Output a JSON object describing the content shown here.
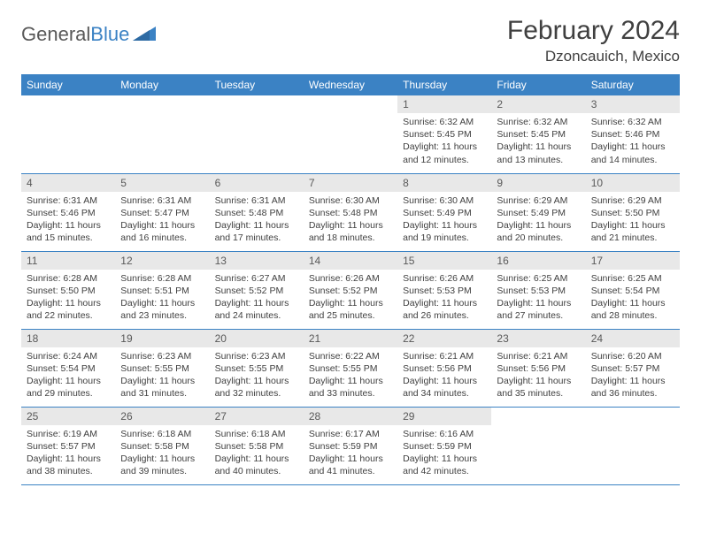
{
  "brand": {
    "part1": "General",
    "part2": "Blue"
  },
  "title": "February 2024",
  "location": "Dzoncauich, Mexico",
  "colors": {
    "header_bg": "#3b82c4",
    "header_text": "#ffffff",
    "daynum_bg": "#e8e8e8",
    "text": "#404040",
    "border": "#3b82c4"
  },
  "weekdays": [
    "Sunday",
    "Monday",
    "Tuesday",
    "Wednesday",
    "Thursday",
    "Friday",
    "Saturday"
  ],
  "weeks": [
    [
      null,
      null,
      null,
      null,
      {
        "n": "1",
        "sunrise": "6:32 AM",
        "sunset": "5:45 PM",
        "dl": "11 hours and 12 minutes."
      },
      {
        "n": "2",
        "sunrise": "6:32 AM",
        "sunset": "5:45 PM",
        "dl": "11 hours and 13 minutes."
      },
      {
        "n": "3",
        "sunrise": "6:32 AM",
        "sunset": "5:46 PM",
        "dl": "11 hours and 14 minutes."
      }
    ],
    [
      {
        "n": "4",
        "sunrise": "6:31 AM",
        "sunset": "5:46 PM",
        "dl": "11 hours and 15 minutes."
      },
      {
        "n": "5",
        "sunrise": "6:31 AM",
        "sunset": "5:47 PM",
        "dl": "11 hours and 16 minutes."
      },
      {
        "n": "6",
        "sunrise": "6:31 AM",
        "sunset": "5:48 PM",
        "dl": "11 hours and 17 minutes."
      },
      {
        "n": "7",
        "sunrise": "6:30 AM",
        "sunset": "5:48 PM",
        "dl": "11 hours and 18 minutes."
      },
      {
        "n": "8",
        "sunrise": "6:30 AM",
        "sunset": "5:49 PM",
        "dl": "11 hours and 19 minutes."
      },
      {
        "n": "9",
        "sunrise": "6:29 AM",
        "sunset": "5:49 PM",
        "dl": "11 hours and 20 minutes."
      },
      {
        "n": "10",
        "sunrise": "6:29 AM",
        "sunset": "5:50 PM",
        "dl": "11 hours and 21 minutes."
      }
    ],
    [
      {
        "n": "11",
        "sunrise": "6:28 AM",
        "sunset": "5:50 PM",
        "dl": "11 hours and 22 minutes."
      },
      {
        "n": "12",
        "sunrise": "6:28 AM",
        "sunset": "5:51 PM",
        "dl": "11 hours and 23 minutes."
      },
      {
        "n": "13",
        "sunrise": "6:27 AM",
        "sunset": "5:52 PM",
        "dl": "11 hours and 24 minutes."
      },
      {
        "n": "14",
        "sunrise": "6:26 AM",
        "sunset": "5:52 PM",
        "dl": "11 hours and 25 minutes."
      },
      {
        "n": "15",
        "sunrise": "6:26 AM",
        "sunset": "5:53 PM",
        "dl": "11 hours and 26 minutes."
      },
      {
        "n": "16",
        "sunrise": "6:25 AM",
        "sunset": "5:53 PM",
        "dl": "11 hours and 27 minutes."
      },
      {
        "n": "17",
        "sunrise": "6:25 AM",
        "sunset": "5:54 PM",
        "dl": "11 hours and 28 minutes."
      }
    ],
    [
      {
        "n": "18",
        "sunrise": "6:24 AM",
        "sunset": "5:54 PM",
        "dl": "11 hours and 29 minutes."
      },
      {
        "n": "19",
        "sunrise": "6:23 AM",
        "sunset": "5:55 PM",
        "dl": "11 hours and 31 minutes."
      },
      {
        "n": "20",
        "sunrise": "6:23 AM",
        "sunset": "5:55 PM",
        "dl": "11 hours and 32 minutes."
      },
      {
        "n": "21",
        "sunrise": "6:22 AM",
        "sunset": "5:55 PM",
        "dl": "11 hours and 33 minutes."
      },
      {
        "n": "22",
        "sunrise": "6:21 AM",
        "sunset": "5:56 PM",
        "dl": "11 hours and 34 minutes."
      },
      {
        "n": "23",
        "sunrise": "6:21 AM",
        "sunset": "5:56 PM",
        "dl": "11 hours and 35 minutes."
      },
      {
        "n": "24",
        "sunrise": "6:20 AM",
        "sunset": "5:57 PM",
        "dl": "11 hours and 36 minutes."
      }
    ],
    [
      {
        "n": "25",
        "sunrise": "6:19 AM",
        "sunset": "5:57 PM",
        "dl": "11 hours and 38 minutes."
      },
      {
        "n": "26",
        "sunrise": "6:18 AM",
        "sunset": "5:58 PM",
        "dl": "11 hours and 39 minutes."
      },
      {
        "n": "27",
        "sunrise": "6:18 AM",
        "sunset": "5:58 PM",
        "dl": "11 hours and 40 minutes."
      },
      {
        "n": "28",
        "sunrise": "6:17 AM",
        "sunset": "5:59 PM",
        "dl": "11 hours and 41 minutes."
      },
      {
        "n": "29",
        "sunrise": "6:16 AM",
        "sunset": "5:59 PM",
        "dl": "11 hours and 42 minutes."
      },
      null,
      null
    ]
  ]
}
